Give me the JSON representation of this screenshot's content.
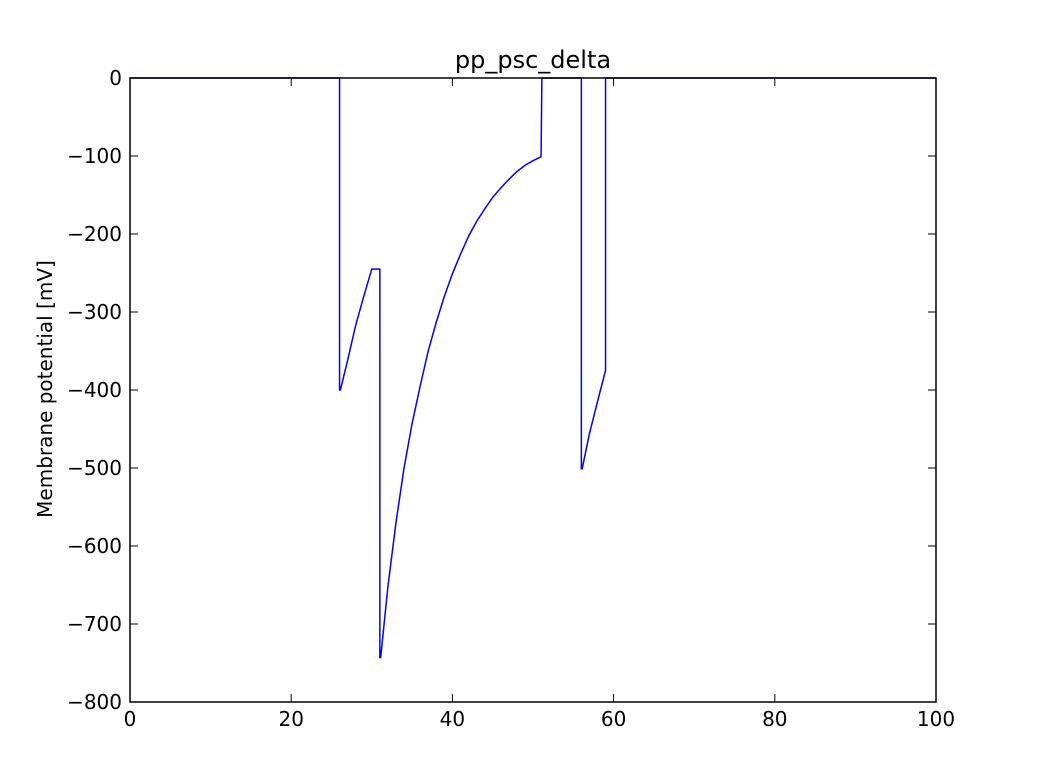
{
  "chart_data": {
    "type": "line",
    "title": "pp_psc_delta",
    "xlabel": "",
    "ylabel": "Membrane potential [mV]",
    "xlim": [
      0,
      100
    ],
    "ylim": [
      -800,
      0
    ],
    "xticks": [
      0,
      20,
      40,
      60,
      80,
      100
    ],
    "yticks": [
      0,
      -100,
      -200,
      -300,
      -400,
      -500,
      -600,
      -700,
      -800
    ],
    "grid": false,
    "colors": {
      "line": "#0000ff",
      "axes": "#000000",
      "background": "#ffffff"
    },
    "series": [
      {
        "x": [
          0,
          26,
          26,
          26.1,
          27,
          28,
          29,
          30,
          31,
          31,
          31.1,
          32,
          33,
          34,
          35,
          36,
          37,
          38,
          39,
          40,
          41,
          42,
          43,
          44,
          45,
          46,
          47,
          48,
          49,
          50,
          51,
          51.1,
          56,
          56,
          56.1,
          57,
          58,
          59,
          59,
          100
        ],
        "y": [
          0,
          0,
          -400,
          -400,
          -362,
          -317,
          -280,
          -245,
          -245,
          -743,
          -743,
          -652,
          -570,
          -500,
          -443,
          -395,
          -350,
          -313,
          -280,
          -251,
          -226,
          -203,
          -184,
          -168,
          -153,
          -141,
          -130,
          -120,
          -112,
          -106,
          -101,
          0,
          0,
          -501,
          -501,
          -456,
          -415,
          -375,
          0,
          0
        ]
      }
    ]
  }
}
